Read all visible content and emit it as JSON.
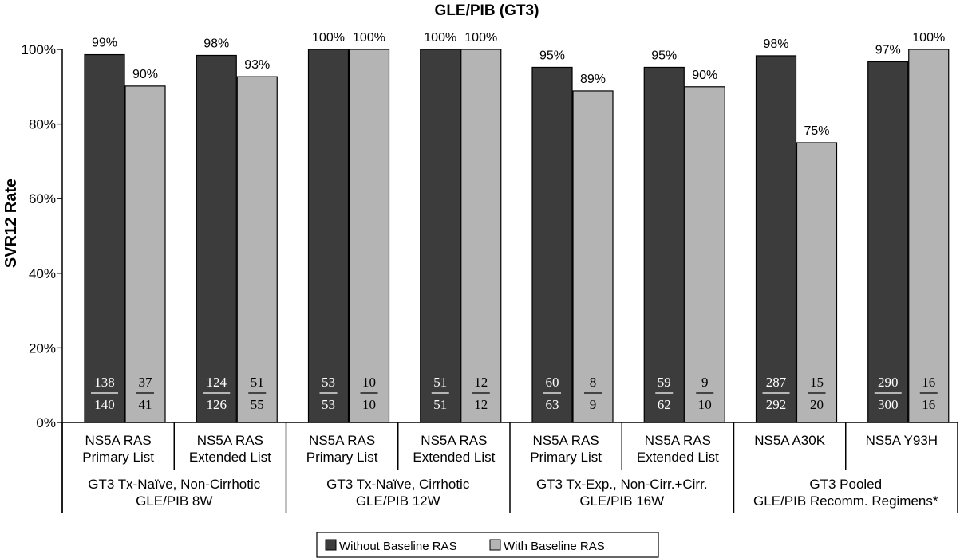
{
  "chart_data": {
    "type": "bar",
    "title": "GLE/PIB (GT3)",
    "ylabel": "SVR12 Rate",
    "xlabel": "",
    "ylim": [
      0,
      100
    ],
    "yticks": [
      0,
      20,
      40,
      60,
      80,
      100
    ],
    "ytick_labels": [
      "0%",
      "20%",
      "40%",
      "60%",
      "80%",
      "100%"
    ],
    "grid": false,
    "legend_position": "bottom",
    "categories": [
      "NS5A RAS\nPrimary List",
      "NS5A RAS\nExtended List",
      "NS5A RAS\nPrimary List",
      "NS5A RAS\nExtended List",
      "NS5A RAS\nPrimary List",
      "NS5A RAS\nExtended List",
      "NS5A A30K",
      "NS5A Y93H"
    ],
    "groups": [
      {
        "label": "GT3 Tx-Naïve, Non-Cirrhotic\nGLE/PIB 8W",
        "span": 2
      },
      {
        "label": "GT3 Tx-Naïve, Cirrhotic\nGLE/PIB 12W",
        "span": 2
      },
      {
        "label": "GT3 Tx-Exp., Non-Cirr.+Cirr.\nGLE/PIB 16W",
        "span": 2
      },
      {
        "label": "GT3 Pooled\nGLE/PIB Recomm. Regimens*",
        "span": 2
      }
    ],
    "series": [
      {
        "name": "Without Baseline RAS",
        "color": "#3c3c3c",
        "values": [
          98.6,
          98.4,
          100,
          100,
          95.2,
          95.2,
          98.3,
          96.7
        ],
        "labels": [
          "99%",
          "98%",
          "100%",
          "100%",
          "95%",
          "95%",
          "98%",
          "97%"
        ],
        "numerators": [
          "138",
          "124",
          "53",
          "51",
          "60",
          "59",
          "287",
          "290"
        ],
        "denominators": [
          "140",
          "126",
          "53",
          "51",
          "63",
          "62",
          "292",
          "300"
        ]
      },
      {
        "name": "With Baseline RAS",
        "color": "#b4b4b4",
        "values": [
          90.2,
          92.7,
          100,
          100,
          88.9,
          90,
          75,
          100
        ],
        "labels": [
          "90%",
          "93%",
          "100%",
          "100%",
          "89%",
          "90%",
          "75%",
          "100%"
        ],
        "numerators": [
          "37",
          "51",
          "10",
          "12",
          "8",
          "9",
          "15",
          "16"
        ],
        "denominators": [
          "41",
          "55",
          "10",
          "12",
          "9",
          "10",
          "20",
          "16"
        ]
      }
    ]
  }
}
